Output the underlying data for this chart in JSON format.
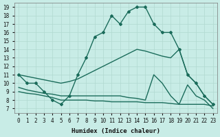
{
  "xlabel": "Humidex (Indice chaleur)",
  "bg_color": "#c8ece6",
  "grid_color": "#b0d8d0",
  "line_color": "#1a6b5a",
  "xlim": [
    -0.5,
    23.5
  ],
  "ylim": [
    6.5,
    19.5
  ],
  "xticks": [
    0,
    1,
    2,
    3,
    4,
    5,
    6,
    7,
    8,
    9,
    10,
    11,
    12,
    13,
    14,
    15,
    16,
    17,
    18,
    19,
    20,
    21,
    22,
    23
  ],
  "yticks": [
    7,
    8,
    9,
    10,
    11,
    12,
    13,
    14,
    15,
    16,
    17,
    18,
    19
  ],
  "lines": [
    {
      "x": [
        0,
        1,
        2,
        3,
        4,
        5,
        6,
        7,
        8,
        9,
        10,
        11,
        12,
        13,
        14,
        15,
        16,
        17,
        18,
        19,
        20,
        21,
        22,
        23
      ],
      "y": [
        11,
        10,
        10,
        9,
        8,
        7.5,
        8.5,
        11,
        13,
        15.5,
        16,
        18,
        17,
        18.5,
        19,
        19,
        17,
        16,
        16,
        14,
        11,
        10,
        8.5,
        7.5
      ],
      "marker": "D",
      "markersize": 2.0,
      "linewidth": 1.0
    },
    {
      "x": [
        0,
        1,
        2,
        3,
        4,
        5,
        6,
        7,
        8,
        9,
        10,
        11,
        12,
        13,
        14,
        15,
        16,
        17,
        18,
        19,
        20,
        21,
        22,
        23
      ],
      "y": [
        11,
        10.8,
        10.6,
        10.4,
        10.2,
        10.0,
        10.2,
        10.5,
        11.0,
        11.5,
        12.0,
        12.5,
        13.0,
        13.5,
        14.0,
        13.8,
        13.5,
        13.2,
        13.0,
        14.0,
        11.0,
        10.0,
        8.5,
        7.5
      ],
      "marker": null,
      "markersize": 0,
      "linewidth": 1.0
    },
    {
      "x": [
        0,
        1,
        2,
        3,
        4,
        5,
        6,
        7,
        8,
        9,
        10,
        11,
        12,
        13,
        14,
        15,
        16,
        17,
        18,
        19,
        20,
        21,
        22,
        23
      ],
      "y": [
        9.5,
        9.2,
        9.0,
        8.8,
        8.7,
        8.5,
        8.5,
        8.5,
        8.5,
        8.5,
        8.5,
        8.5,
        8.5,
        8.3,
        8.2,
        8.0,
        11.0,
        10.0,
        8.5,
        7.5,
        9.8,
        8.5,
        8.0,
        7.0
      ],
      "marker": null,
      "markersize": 0,
      "linewidth": 1.0
    },
    {
      "x": [
        0,
        1,
        2,
        3,
        4,
        5,
        6,
        7,
        8,
        9,
        10,
        11,
        12,
        13,
        14,
        15,
        16,
        17,
        18,
        19,
        20,
        21,
        22,
        23
      ],
      "y": [
        9.0,
        8.8,
        8.7,
        8.5,
        8.3,
        8.0,
        8.0,
        8.0,
        8.0,
        7.9,
        7.9,
        7.8,
        7.8,
        7.8,
        7.8,
        7.7,
        7.7,
        7.7,
        7.6,
        7.5,
        7.5,
        7.5,
        7.5,
        7.3
      ],
      "marker": null,
      "markersize": 0,
      "linewidth": 1.0
    }
  ]
}
